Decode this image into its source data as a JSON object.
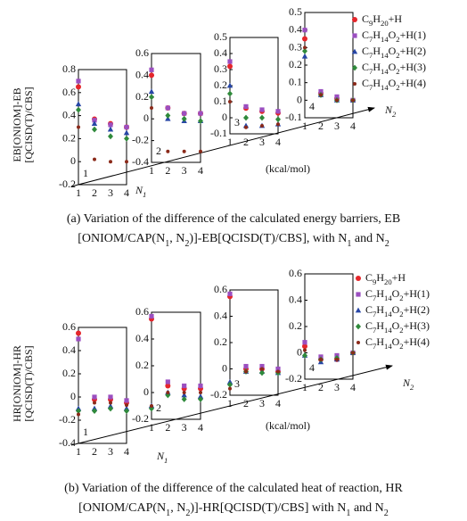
{
  "chart_data": [
    {
      "type": "scatter",
      "ylabel": [
        "EB[ONIOM]-EB",
        "[QCISD(T)/CBS]"
      ],
      "xlabel": "N1",
      "zlabel": "N2",
      "unit": "(kcal/mol)",
      "caption": [
        "(a) Variation of the difference of the calculated energy barriers, EB",
        "[ONIOM/CAP(N1, N2)]-EB[QCISD(T)/CBS], with N1 and N2"
      ],
      "categories": [
        "1",
        "2",
        "3",
        "4"
      ],
      "series": [
        {
          "name": "C9H20+H",
          "color": "#e5262b",
          "marker": "circle"
        },
        {
          "name": "C7H14O2+H(1)",
          "color": "#9b4fc0",
          "marker": "square"
        },
        {
          "name": "C7H14O2+H(2)",
          "color": "#2746a6",
          "marker": "triangle"
        },
        {
          "name": "C7H14O2+H(3)",
          "color": "#2f8a3b",
          "marker": "diamond"
        },
        {
          "name": "C7H14O2+H(4)",
          "color": "#8b2a1a",
          "marker": "dot"
        }
      ],
      "subplots": [
        {
          "label": "1",
          "ylim": [
            -0.2,
            0.8
          ],
          "yticks": [
            -0.2,
            0,
            0.2,
            0.4,
            0.6,
            0.8
          ],
          "values": [
            [
              0.65,
              0.37,
              0.33,
              0.3
            ],
            [
              0.7,
              0.36,
              0.32,
              0.3
            ],
            [
              0.5,
              0.33,
              0.28,
              0.25
            ],
            [
              0.45,
              0.28,
              0.22,
              0.2
            ],
            [
              0.3,
              0.02,
              0.0,
              0.0
            ]
          ]
        },
        {
          "label": "2",
          "ylim": [
            -0.4,
            0.6
          ],
          "yticks": [
            -0.4,
            -0.2,
            0,
            0.2,
            0.4,
            0.6
          ],
          "values": [
            [
              0.4,
              0.1,
              0.05,
              0.05
            ],
            [
              0.45,
              0.1,
              0.05,
              0.05
            ],
            [
              0.25,
              0.0,
              -0.02,
              -0.02
            ],
            [
              0.2,
              0.03,
              0.0,
              -0.02
            ],
            [
              0.1,
              -0.3,
              -0.3,
              -0.3
            ]
          ]
        },
        {
          "label": "3",
          "ylim": [
            -0.1,
            0.5
          ],
          "yticks": [
            -0.1,
            0,
            0.1,
            0.2,
            0.3,
            0.4,
            0.5
          ],
          "values": [
            [
              0.32,
              0.06,
              0.04,
              0.03
            ],
            [
              0.35,
              0.07,
              0.05,
              0.04
            ],
            [
              0.2,
              -0.05,
              -0.05,
              -0.04
            ],
            [
              0.15,
              0.0,
              0.0,
              -0.01
            ],
            [
              0.1,
              -0.06,
              -0.05,
              -0.04
            ]
          ]
        },
        {
          "label": "4",
          "ylim": [
            -0.1,
            0.5
          ],
          "yticks": [
            -0.1,
            0,
            0.1,
            0.2,
            0.3,
            0.4,
            0.5
          ],
          "values": [
            [
              0.35,
              0.04,
              0.01,
              0.0
            ],
            [
              0.4,
              0.05,
              0.02,
              0.0
            ],
            [
              0.25,
              0.03,
              0.0,
              0.0
            ],
            [
              0.28,
              0.03,
              0.0,
              0.0
            ],
            [
              0.3,
              0.03,
              0.0,
              0.0
            ]
          ]
        }
      ]
    },
    {
      "type": "scatter",
      "ylabel": [
        "HR[ONIOM]-HR",
        "[QCISD(T)/CBS]"
      ],
      "xlabel": "N1",
      "zlabel": "N2",
      "unit": "(kcal/mol)",
      "caption": [
        "(b) Variation of the difference of the calculated heat of reaction, HR",
        "[ONIOM/CAP(N1, N2)]-HR[QCISD(T)/CBS] with N1 and N2"
      ],
      "categories": [
        "1",
        "2",
        "3",
        "4"
      ],
      "series": [
        {
          "name": "C9H20+H",
          "color": "#e5262b",
          "marker": "circle"
        },
        {
          "name": "C7H14O2+H(1)",
          "color": "#9b4fc0",
          "marker": "square"
        },
        {
          "name": "C7H14O2+H(2)",
          "color": "#2746a6",
          "marker": "triangle"
        },
        {
          "name": "C7H14O2+H(3)",
          "color": "#2f8a3b",
          "marker": "diamond"
        },
        {
          "name": "C7H14O2+H(4)",
          "color": "#8b2a1a",
          "marker": "dot"
        }
      ],
      "subplots": [
        {
          "label": "1",
          "ylim": [
            -0.4,
            0.6
          ],
          "yticks": [
            -0.4,
            -0.2,
            0,
            0.2,
            0.4,
            0.6
          ],
          "values": [
            [
              0.55,
              -0.02,
              -0.02,
              -0.05
            ],
            [
              0.5,
              0.0,
              0.0,
              -0.03
            ],
            [
              -0.1,
              -0.1,
              -0.08,
              -0.1
            ],
            [
              -0.12,
              -0.12,
              -0.1,
              -0.12
            ],
            [
              -0.15,
              -0.05,
              -0.05,
              -0.07
            ]
          ]
        },
        {
          "label": "2",
          "ylim": [
            -0.2,
            0.6
          ],
          "yticks": [
            -0.2,
            0,
            0.2,
            0.4,
            0.6
          ],
          "values": [
            [
              0.55,
              0.05,
              0.03,
              0.03
            ],
            [
              0.57,
              0.08,
              0.05,
              0.05
            ],
            [
              -0.1,
              0.0,
              -0.02,
              -0.03
            ],
            [
              -0.12,
              -0.02,
              -0.05,
              -0.05
            ],
            [
              -0.1,
              0.0,
              0.0,
              0.0
            ]
          ]
        },
        {
          "label": "3",
          "ylim": [
            -0.2,
            0.6
          ],
          "yticks": [
            -0.2,
            0,
            0.2,
            0.4,
            0.6
          ],
          "values": [
            [
              0.55,
              0.0,
              0.0,
              -0.02
            ],
            [
              0.57,
              0.02,
              0.02,
              0.0
            ],
            [
              -0.1,
              -0.02,
              -0.02,
              -0.03
            ],
            [
              -0.12,
              -0.02,
              -0.03,
              -0.03
            ],
            [
              -0.15,
              -0.02,
              0.0,
              -0.02
            ]
          ]
        },
        {
          "label": "4",
          "ylim": [
            -0.2,
            0.6
          ],
          "yticks": [
            -0.2,
            0,
            0.2,
            0.4,
            0.6
          ],
          "values": [
            [
              0.05,
              -0.05,
              -0.05,
              0.0
            ],
            [
              0.08,
              -0.03,
              -0.02,
              0.0
            ],
            [
              -0.02,
              -0.07,
              -0.05,
              0.0
            ],
            [
              -0.02,
              -0.05,
              -0.04,
              0.0
            ],
            [
              0.02,
              -0.05,
              -0.05,
              0.0
            ]
          ]
        }
      ]
    }
  ]
}
